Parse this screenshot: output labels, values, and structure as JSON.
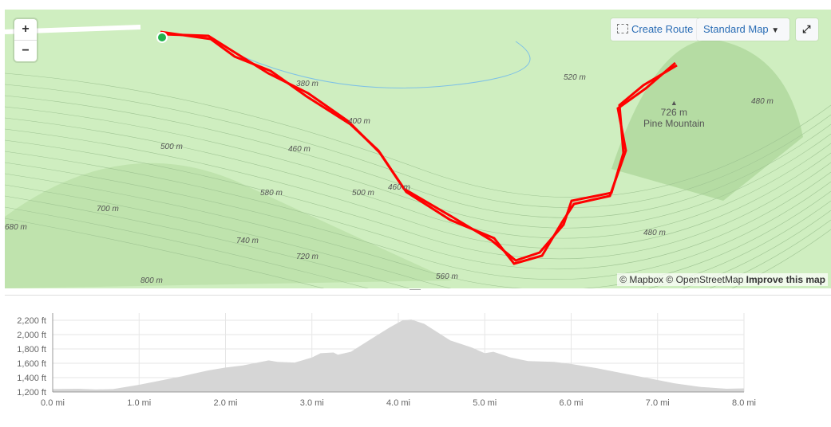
{
  "map": {
    "zoom_in": "+",
    "zoom_out": "−",
    "create_route": "Create Route",
    "map_style": "Standard Map",
    "fullscreen_icon": "expand-icon",
    "attribution": {
      "mapbox": "© Mapbox",
      "osm": "© OpenStreetMap",
      "improve": "Improve this map"
    },
    "peak": {
      "elevation": "726 m",
      "name": "Pine Mountain"
    },
    "contour_labels": [
      "380 m",
      "400 m",
      "460 m",
      "500 m",
      "460 m",
      "580 m",
      "500 m",
      "700 m",
      "680 m",
      "740 m",
      "720 m",
      "800 m",
      "560 m",
      "520 m",
      "480 m",
      "480 m"
    ],
    "route_color": "#ff0000",
    "start_color": "#22b14c",
    "land_color": "#cfeec0"
  },
  "chart_data": {
    "type": "area",
    "xlabel": "",
    "ylabel": "",
    "x_ticks": [
      "0.0 mi",
      "1.0 mi",
      "2.0 mi",
      "3.0 mi",
      "4.0 mi",
      "5.0 mi",
      "6.0 mi",
      "7.0 mi",
      "8.0 mi"
    ],
    "y_ticks": [
      "1,200 ft",
      "1,400 ft",
      "1,600 ft",
      "1,800 ft",
      "2,000 ft",
      "2,200 ft"
    ],
    "xlim": [
      0,
      8
    ],
    "ylim": [
      1200,
      2200
    ],
    "grid": true,
    "fill_color": "#d6d6d6",
    "x": [
      0,
      0.3,
      0.5,
      0.7,
      1.0,
      1.5,
      1.8,
      2.0,
      2.2,
      2.5,
      2.6,
      2.8,
      3.0,
      3.1,
      3.25,
      3.3,
      3.45,
      3.7,
      3.9,
      4.05,
      4.15,
      4.3,
      4.6,
      4.85,
      5.0,
      5.1,
      5.3,
      5.5,
      5.8,
      6.0,
      6.3,
      6.6,
      6.9,
      7.2,
      7.5,
      7.8,
      8.0
    ],
    "y": [
      1240,
      1245,
      1235,
      1240,
      1300,
      1420,
      1500,
      1540,
      1570,
      1640,
      1620,
      1610,
      1680,
      1740,
      1750,
      1720,
      1760,
      1950,
      2100,
      2200,
      2210,
      2150,
      1920,
      1820,
      1740,
      1760,
      1680,
      1630,
      1620,
      1590,
      1530,
      1460,
      1390,
      1320,
      1270,
      1245,
      1250
    ]
  }
}
